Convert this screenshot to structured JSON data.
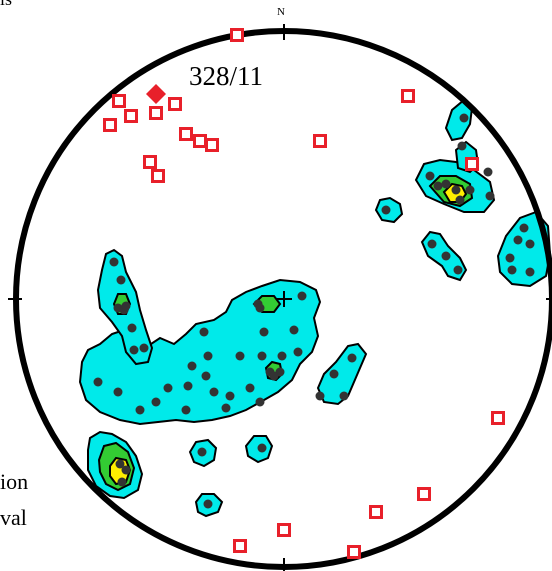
{
  "text": {
    "north": "N",
    "mean_label": "328/11",
    "fragment_top": "ls",
    "fragment_line1": "ion",
    "fragment_line2": "val"
  },
  "colors": {
    "outline": "#000000",
    "contour_low": "#00eaea",
    "contour_mid": "#33cc33",
    "contour_high": "#ffee00",
    "pole": "#333333",
    "square": "#e8202a",
    "mean": "#e8202a"
  },
  "symbols": {
    "pole": "filled-circle",
    "square": "open-square",
    "mean": "filled-diamond",
    "center": "cross"
  }
}
